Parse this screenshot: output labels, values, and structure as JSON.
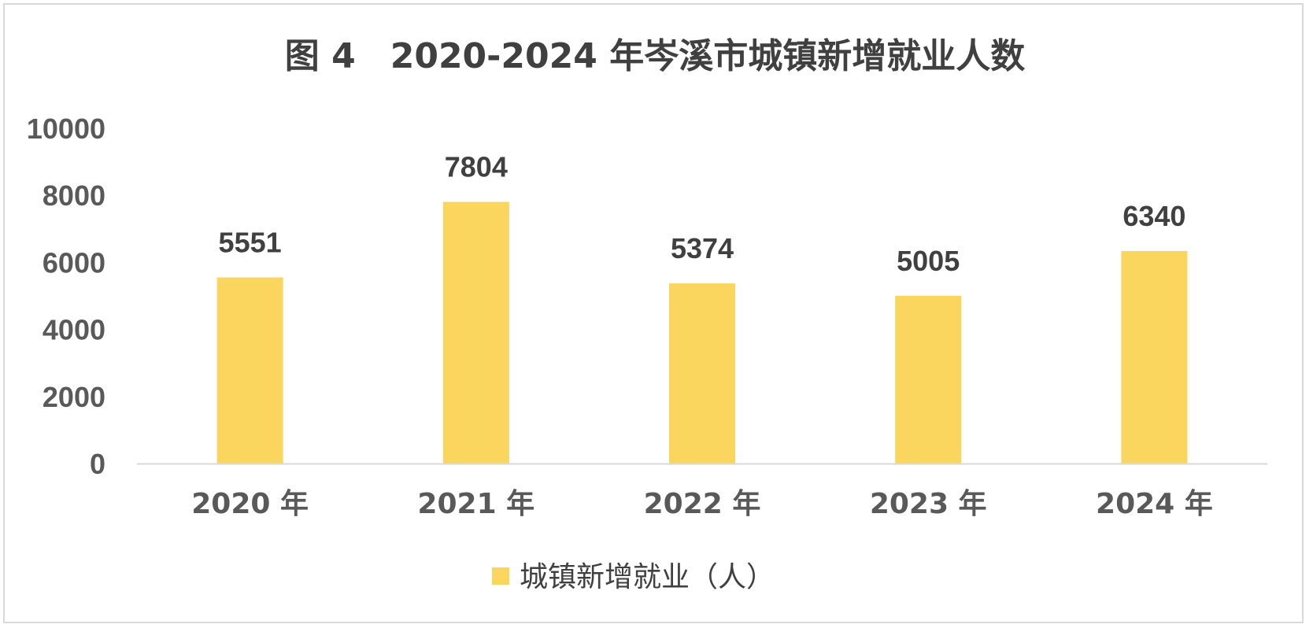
{
  "chart_data": {
    "type": "bar",
    "title": "图 4　2020-2024 年岑溪市城镇新增就业人数",
    "categories": [
      "2020 年",
      "2021 年",
      "2022 年",
      "2023 年",
      "2024 年"
    ],
    "series": [
      {
        "name": "城镇新增就业（人）",
        "values": [
          5551,
          7804,
          5374,
          5005,
          6340
        ],
        "color": "#fbd65f"
      }
    ],
    "ylim": [
      0,
      10000
    ],
    "yticks": [
      0,
      2000,
      4000,
      6000,
      8000,
      10000
    ],
    "xlabel": "",
    "ylabel": "",
    "grid": false,
    "legend_position": "bottom",
    "data_labels": true,
    "axis_color": "#d9d9d9"
  }
}
